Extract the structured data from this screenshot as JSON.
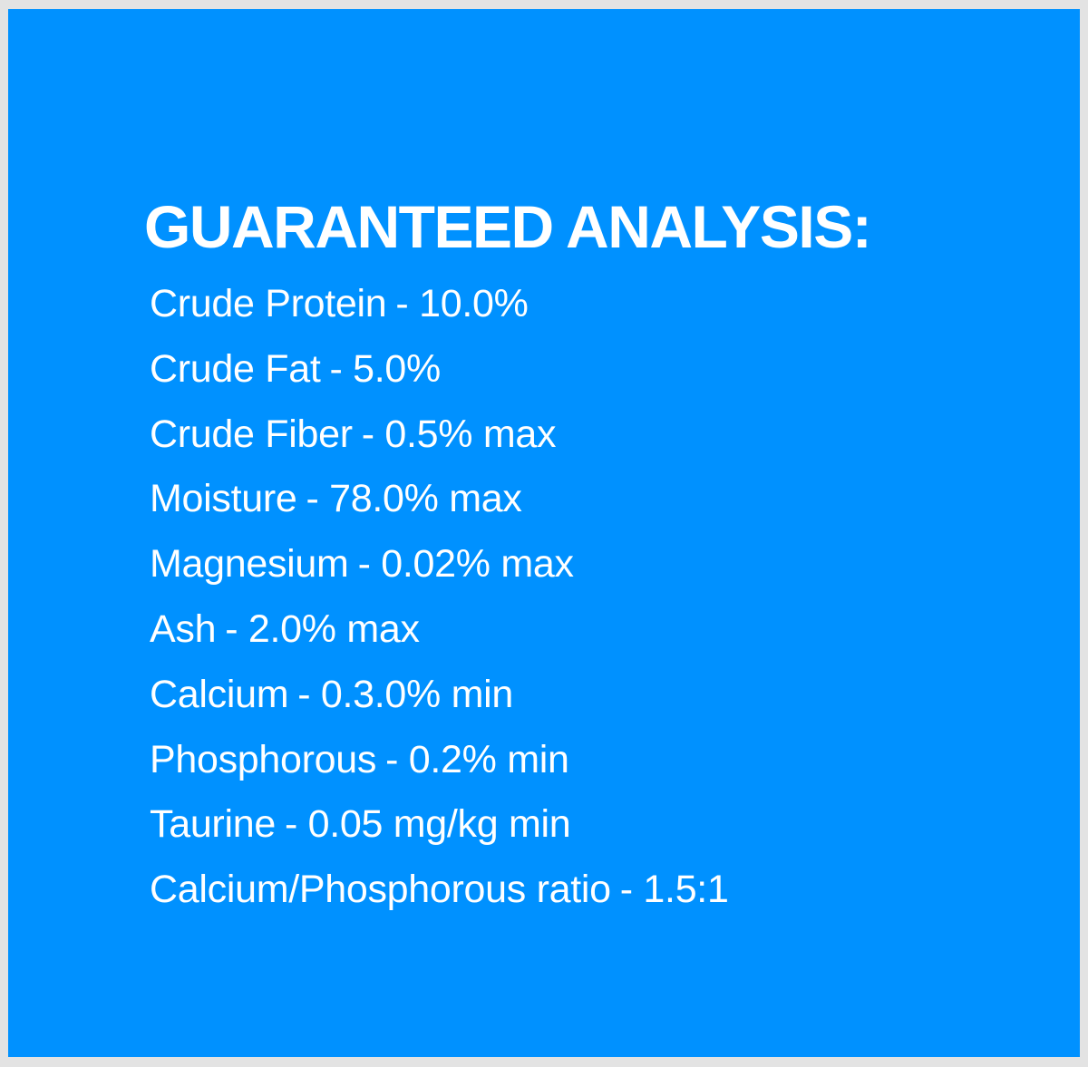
{
  "title": "GUARANTEED ANALYSIS:",
  "colors": {
    "background": "#0091ff",
    "text": "#ffffff",
    "frame": "#e3e3e3"
  },
  "items": [
    {
      "label": "Crude Protein",
      "value": "- 10.0%"
    },
    {
      "label": "Crude Fat",
      "value": "- 5.0%"
    },
    {
      "label": "Crude Fiber",
      "value": "- 0.5% max"
    },
    {
      "label": "Moisture",
      "value": "- 78.0% max"
    },
    {
      "label": "Magnesium",
      "value": "- 0.02% max"
    },
    {
      "label": "Ash",
      "value": "- 2.0% max"
    },
    {
      "label": "Calcium",
      "value": "- 0.3.0% min"
    },
    {
      "label": "Phosphorous",
      "value": "- 0.2% min"
    },
    {
      "label": "Taurine",
      "value": "- 0.05 mg/kg min"
    },
    {
      "label": "Calcium/Phosphorous ratio",
      "value": "- 1.5:1"
    }
  ]
}
